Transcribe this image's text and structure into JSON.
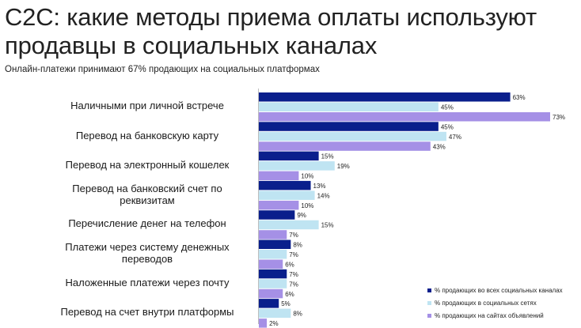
{
  "header": {
    "title": "C2C: какие методы приема оплаты используют продавцы в социальных каналах",
    "subtitle": "Онлайн-платежи принимают 67% продающих на социальных платформах"
  },
  "chart_data": {
    "type": "bar",
    "orientation": "horizontal",
    "categories": [
      "Наличными при личной встрече",
      "Перевод на банковскую карту",
      "Перевод на электронный кошелек",
      "Перевод на банковский счет по реквизитам",
      "Перечисление денег на телефон",
      "Платежи через систему денежных переводов",
      "Наложенные платежи через почту",
      "Перевод на счет внутри платформы"
    ],
    "series": [
      {
        "name": "% продающих во всех социальных каналах",
        "color": "#0a1f8c",
        "values": [
          63,
          45,
          15,
          13,
          9,
          8,
          7,
          5
        ]
      },
      {
        "name": "% продающих в социальных сетях",
        "color": "#bfe4f2",
        "values": [
          45,
          47,
          19,
          14,
          15,
          7,
          7,
          8
        ]
      },
      {
        "name": "% продающих на сайтах объявлений",
        "color": "#a590e6",
        "values": [
          73,
          43,
          10,
          10,
          7,
          6,
          6,
          2
        ]
      }
    ],
    "value_suffix": "%",
    "xlim": [
      0,
      73
    ],
    "grid": false,
    "legend_position": "bottom-right"
  }
}
